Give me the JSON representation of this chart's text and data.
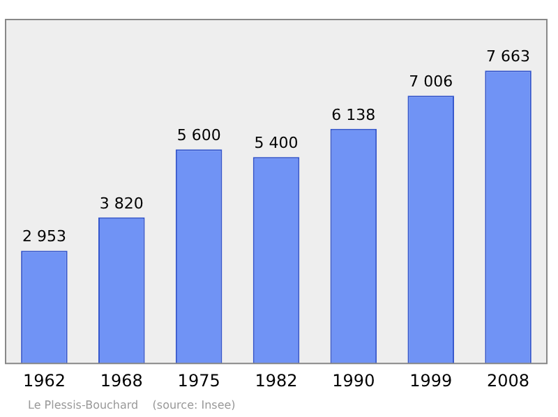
{
  "chart_data": {
    "type": "bar",
    "categories": [
      "1962",
      "1968",
      "1975",
      "1982",
      "1990",
      "1999",
      "2008"
    ],
    "values": [
      2953,
      3820,
      5600,
      5400,
      6138,
      7006,
      7663
    ],
    "value_labels": [
      "2 953",
      "3 820",
      "5 600",
      "5 400",
      "6 138",
      "7 006",
      "7 663"
    ],
    "color": "#7093f5",
    "grid": false,
    "legend": false,
    "annotations": [
      "Le Plessis-Bouchard    (source: Insee)"
    ]
  }
}
